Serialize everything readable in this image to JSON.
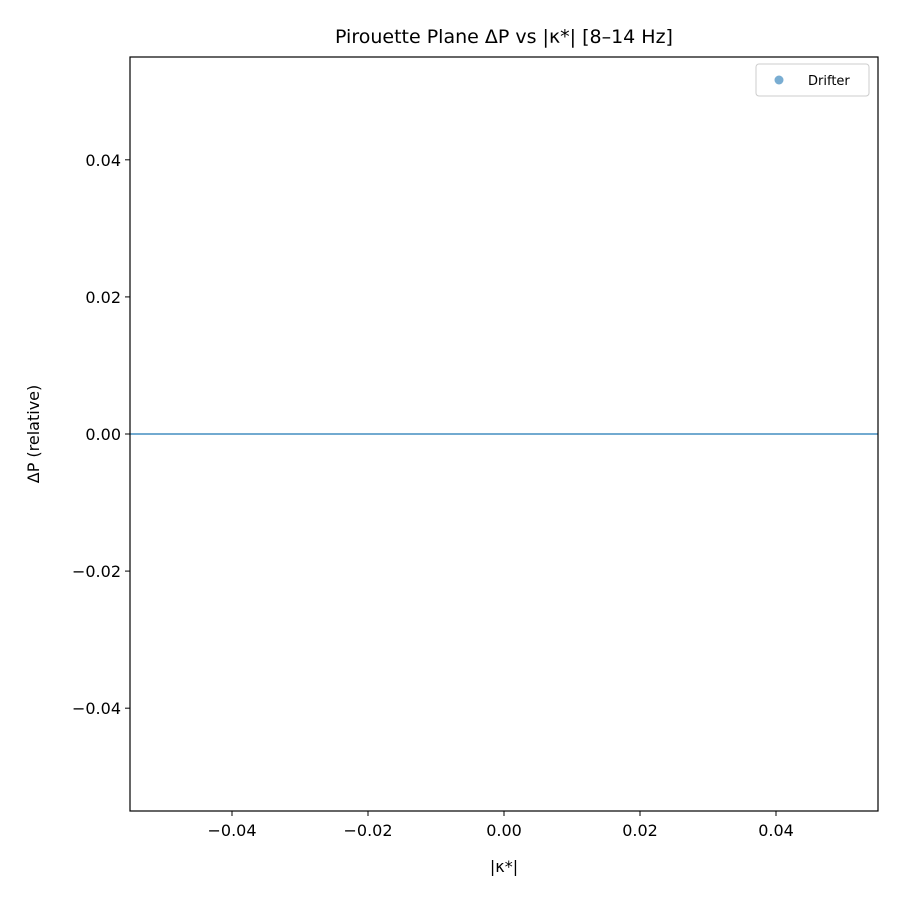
{
  "chart_data": {
    "type": "scatter",
    "title": "Pirouette Plane ΔP vs |κ*|  [8–14 Hz]",
    "xlabel": "|κ*|",
    "ylabel": "ΔP (relative)",
    "xlim": [
      -0.055,
      0.055
    ],
    "ylim": [
      -0.055,
      0.055
    ],
    "x_ticks": [
      -0.04,
      -0.02,
      0.0,
      0.02,
      0.04
    ],
    "x_tick_labels": [
      "−0.04",
      "−0.02",
      "0.00",
      "0.02",
      "0.04"
    ],
    "y_ticks": [
      -0.04,
      -0.02,
      0.0,
      0.02,
      0.04
    ],
    "y_tick_labels": [
      "−0.04",
      "−0.02",
      "0.00",
      "0.02",
      "0.04"
    ],
    "grid": false,
    "legend_position": "top-right",
    "series": [
      {
        "name": "Drifter",
        "color": "#1f77b4",
        "points": []
      }
    ],
    "reference_lines": [
      {
        "orientation": "horizontal",
        "y": 0.0,
        "color": "#1f77b4"
      }
    ]
  }
}
